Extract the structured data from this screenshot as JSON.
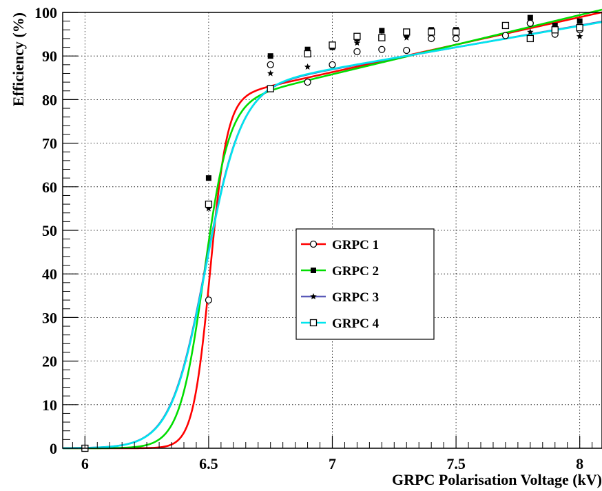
{
  "chart_data": {
    "type": "scatter",
    "xlabel": "GRPC Polarisation Voltage (kV)",
    "ylabel": "Efficiency (%)",
    "xlim": [
      5.91,
      8.09
    ],
    "ylim": [
      0,
      100
    ],
    "x_ticks": [
      "6",
      "6.5",
      "7",
      "7.5",
      "8"
    ],
    "y_ticks": [
      "0",
      "10",
      "20",
      "30",
      "40",
      "50",
      "60",
      "70",
      "80",
      "90",
      "100"
    ],
    "grid": true,
    "legend_position": "center",
    "series": [
      {
        "name": "GRPC 1",
        "color": "#ff0000",
        "marker": "open-circle",
        "marker_color": "#000000",
        "points": [
          {
            "x": 6.0,
            "y": 0
          },
          {
            "x": 6.5,
            "y": 34
          },
          {
            "x": 6.75,
            "y": 88
          },
          {
            "x": 6.9,
            "y": 84
          },
          {
            "x": 7.0,
            "y": 88
          },
          {
            "x": 7.1,
            "y": 91
          },
          {
            "x": 7.2,
            "y": 91.5
          },
          {
            "x": 7.3,
            "y": 91.3
          },
          {
            "x": 7.4,
            "y": 94
          },
          {
            "x": 7.5,
            "y": 94
          },
          {
            "x": 7.7,
            "y": 94.7
          },
          {
            "x": 7.8,
            "y": 97.5
          },
          {
            "x": 7.9,
            "y": 95
          },
          {
            "x": 8.0,
            "y": 96
          }
        ],
        "fit": {
          "x0": 6.505,
          "k": 29,
          "lo": 0,
          "hi_a": 80,
          "hi_b": 12.6
        }
      },
      {
        "name": "GRPC 2",
        "color": "#00dd00",
        "marker": "filled-square",
        "marker_color": "#000000",
        "points": [
          {
            "x": 6.0,
            "y": 0
          },
          {
            "x": 6.5,
            "y": 62
          },
          {
            "x": 6.75,
            "y": 90
          },
          {
            "x": 6.9,
            "y": 91.5
          },
          {
            "x": 7.0,
            "y": 92
          },
          {
            "x": 7.1,
            "y": 94
          },
          {
            "x": 7.2,
            "y": 95.8
          },
          {
            "x": 7.3,
            "y": 95
          },
          {
            "x": 7.4,
            "y": 96
          },
          {
            "x": 7.5,
            "y": 96
          },
          {
            "x": 7.7,
            "y": 97
          },
          {
            "x": 7.8,
            "y": 98.8
          },
          {
            "x": 7.9,
            "y": 97
          },
          {
            "x": 8.0,
            "y": 98
          }
        ],
        "fit": {
          "x0": 6.48,
          "k": 20,
          "lo": 0,
          "hi_a": 79,
          "hi_b": 13.6
        }
      },
      {
        "name": "GRPC 3",
        "color": "#5a5ab8",
        "marker": "filled-star",
        "marker_color": "#000000",
        "points": [
          {
            "x": 6.0,
            "y": 0
          },
          {
            "x": 6.5,
            "y": 55
          },
          {
            "x": 6.75,
            "y": 86
          },
          {
            "x": 6.9,
            "y": 87.5
          },
          {
            "x": 7.0,
            "y": 92
          },
          {
            "x": 7.1,
            "y": 93
          },
          {
            "x": 7.2,
            "y": 94.5
          },
          {
            "x": 7.3,
            "y": 94.2
          },
          {
            "x": 7.4,
            "y": 95.5
          },
          {
            "x": 7.5,
            "y": 95.5
          },
          {
            "x": 7.7,
            "y": 97
          },
          {
            "x": 7.8,
            "y": 95.5
          },
          {
            "x": 7.9,
            "y": 96
          },
          {
            "x": 8.0,
            "y": 94.5
          }
        ],
        "fit": {
          "x0": 6.485,
          "k": 14,
          "lo": 0,
          "hi_a": 82,
          "hi_b": 10
        }
      },
      {
        "name": "GRPC 4",
        "color": "#00e5ee",
        "marker": "open-square",
        "marker_color": "#000000",
        "points": [
          {
            "x": 6.0,
            "y": 0
          },
          {
            "x": 6.5,
            "y": 56
          },
          {
            "x": 6.75,
            "y": 82.5
          },
          {
            "x": 6.9,
            "y": 90.5
          },
          {
            "x": 7.0,
            "y": 92.5
          },
          {
            "x": 7.1,
            "y": 94.5
          },
          {
            "x": 7.2,
            "y": 94.2
          },
          {
            "x": 7.3,
            "y": 95.5
          },
          {
            "x": 7.4,
            "y": 95.5
          },
          {
            "x": 7.5,
            "y": 95.5
          },
          {
            "x": 7.7,
            "y": 97
          },
          {
            "x": 7.8,
            "y": 94
          },
          {
            "x": 7.9,
            "y": 96
          },
          {
            "x": 8.0,
            "y": 96.5
          }
        ],
        "fit": {
          "x0": 6.487,
          "k": 14,
          "lo": 0,
          "hi_a": 82.2,
          "hi_b": 9.8
        }
      }
    ]
  }
}
